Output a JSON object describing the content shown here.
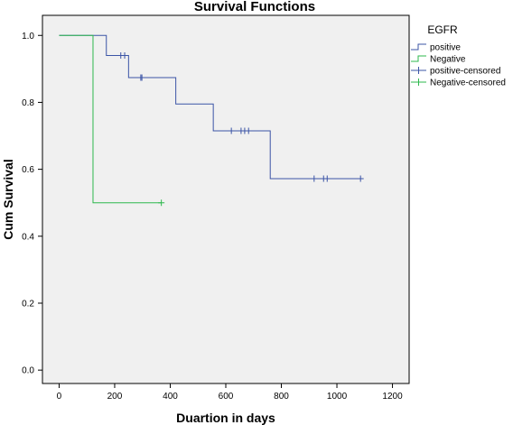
{
  "chart_data": {
    "type": "line",
    "title": "Survival Functions",
    "xlabel": "Duartion in days",
    "ylabel": "Cum Survival",
    "xlim": [
      -60,
      1260
    ],
    "ylim": [
      -0.04,
      1.06
    ],
    "xticks": [
      0,
      200,
      400,
      600,
      800,
      1000,
      1200
    ],
    "yticks": [
      0.0,
      0.2,
      0.4,
      0.6,
      0.8,
      1.0
    ],
    "xtick_labels": [
      "0",
      "200",
      "400",
      "600",
      "800",
      "1000",
      "1200"
    ],
    "ytick_labels": [
      "0.0",
      "0.2",
      "0.4",
      "0.6",
      "0.8",
      "1.0"
    ],
    "grid": false,
    "legend": {
      "title": "EGFR",
      "placement": "right",
      "entries": [
        {
          "label": "positive",
          "kind": "line",
          "color": "#3b54a6"
        },
        {
          "label": "Negative",
          "kind": "line",
          "color": "#2db84d"
        },
        {
          "label": "positive-censored",
          "kind": "marker",
          "color": "#3b54a6"
        },
        {
          "label": "Negative-censored",
          "kind": "marker",
          "color": "#2db84d"
        }
      ]
    },
    "series": [
      {
        "name": "positive",
        "color": "#3b54a6",
        "steps": [
          {
            "x": 0,
            "y": 1.0
          },
          {
            "x": 170,
            "y": 0.94
          },
          {
            "x": 250,
            "y": 0.874
          },
          {
            "x": 420,
            "y": 0.795
          },
          {
            "x": 555,
            "y": 0.715
          },
          {
            "x": 760,
            "y": 0.572
          }
        ],
        "end_x": 1085,
        "censored": [
          {
            "x": 222,
            "y": 0.94
          },
          {
            "x": 236,
            "y": 0.94
          },
          {
            "x": 294,
            "y": 0.874
          },
          {
            "x": 298,
            "y": 0.874
          },
          {
            "x": 620,
            "y": 0.715
          },
          {
            "x": 655,
            "y": 0.715
          },
          {
            "x": 668,
            "y": 0.715
          },
          {
            "x": 682,
            "y": 0.715
          },
          {
            "x": 918,
            "y": 0.572
          },
          {
            "x": 952,
            "y": 0.572
          },
          {
            "x": 965,
            "y": 0.572
          },
          {
            "x": 1085,
            "y": 0.572
          }
        ]
      },
      {
        "name": "Negative",
        "color": "#2db84d",
        "steps": [
          {
            "x": 0,
            "y": 1.0
          },
          {
            "x": 122,
            "y": 0.5
          }
        ],
        "end_x": 368,
        "censored": [
          {
            "x": 368,
            "y": 0.5
          }
        ]
      }
    ]
  }
}
